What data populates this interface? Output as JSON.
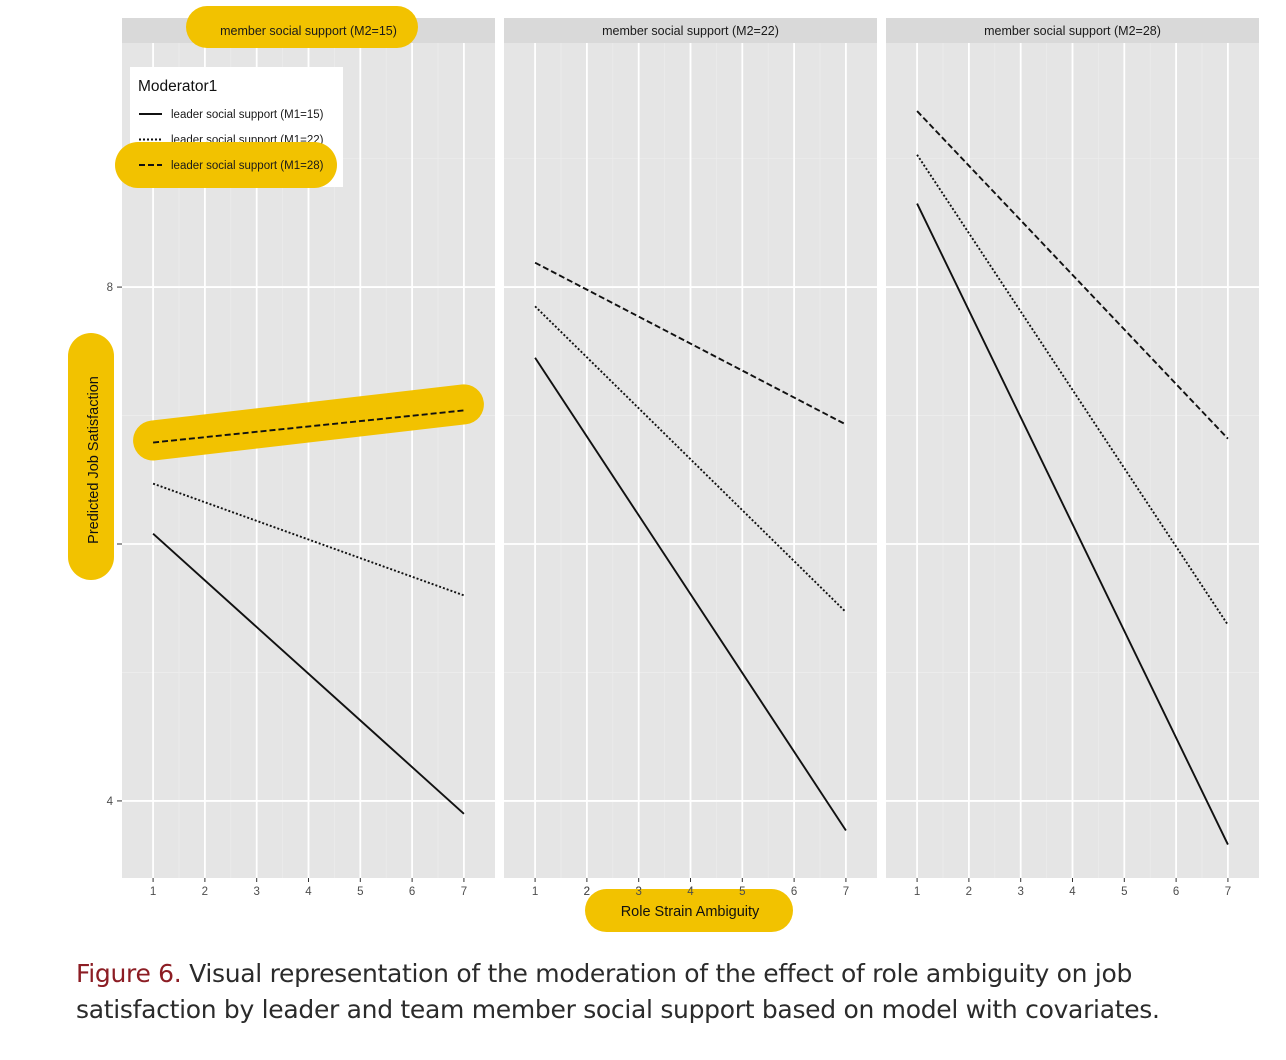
{
  "chart_data": {
    "type": "line",
    "facet_variable": "member social support",
    "panels": [
      {
        "strip": "member social support (M2=15)",
        "series": [
          {
            "name": "leader social support (M1=15)",
            "linetype": "solid",
            "x": [
              1,
              7
            ],
            "y": [
              6.08,
              3.9
            ]
          },
          {
            "name": "leader social support (M1=22)",
            "linetype": "dotted",
            "x": [
              1,
              7
            ],
            "y": [
              6.47,
              5.6
            ]
          },
          {
            "name": "leader social support (M1=28)",
            "linetype": "dashed",
            "x": [
              1,
              7
            ],
            "y": [
              6.79,
              7.04
            ]
          }
        ]
      },
      {
        "strip": "member social support (M2=22)",
        "series": [
          {
            "name": "leader social support (M1=15)",
            "linetype": "solid",
            "x": [
              1,
              7
            ],
            "y": [
              7.45,
              3.77
            ]
          },
          {
            "name": "leader social support (M1=22)",
            "linetype": "dotted",
            "x": [
              1,
              7
            ],
            "y": [
              7.85,
              5.47
            ]
          },
          {
            "name": "leader social support (M1=28)",
            "linetype": "dashed",
            "x": [
              1,
              7
            ],
            "y": [
              8.19,
              6.93
            ]
          }
        ]
      },
      {
        "strip": "member social support (M2=28)",
        "series": [
          {
            "name": "leader social support (M1=15)",
            "linetype": "solid",
            "x": [
              1,
              7
            ],
            "y": [
              8.65,
              3.66
            ]
          },
          {
            "name": "leader social support (M1=22)",
            "linetype": "dotted",
            "x": [
              1,
              7
            ],
            "y": [
              9.03,
              5.37
            ]
          },
          {
            "name": "leader social support (M1=28)",
            "linetype": "dashed",
            "x": [
              1,
              7
            ],
            "y": [
              9.37,
              6.82
            ]
          }
        ]
      }
    ],
    "xlabel": "Role Strain Ambiguity",
    "ylabel": "Predicted Job Satisfaction",
    "x_ticks": [
      1,
      2,
      3,
      4,
      5,
      6,
      7
    ],
    "y_ticks": [
      4,
      6,
      8
    ],
    "xlim": [
      0.4,
      7.6
    ],
    "ylim": [
      3.4,
      9.9
    ],
    "grid": true,
    "legend": {
      "title": "Moderator1",
      "position": "top-left inside first panel",
      "entries": [
        {
          "label": "leader social support (M1=15)",
          "linetype": "solid"
        },
        {
          "label": "leader social support (M1=22)",
          "linetype": "dotted"
        },
        {
          "label": "leader social support (M1=28)",
          "linetype": "dashed"
        }
      ]
    },
    "highlighted": [
      "strip: member social support (M2=15)",
      "legend: leader social support (M1=28)",
      "series: leader social support (M1=28) in panel M2=15",
      "ylabel",
      "xlabel"
    ]
  },
  "caption": {
    "label": "Figure 6.",
    "text": " Visual representation of the moderation of the effect of role ambiguity on job satisfaction by leader and team member social support based on model with covariates."
  },
  "colors": {
    "panel_bg": "#e5e5e5",
    "strip_bg": "#d9d9d9",
    "grid": "#ffffff",
    "line": "#111111",
    "highlight": "#f2c200",
    "caption_label": "#8c1d24",
    "caption_text": "#2b2b2b"
  }
}
